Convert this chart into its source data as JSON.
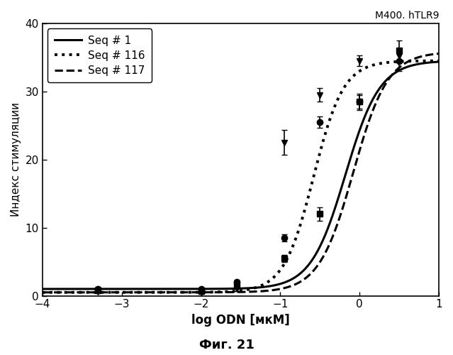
{
  "title_annotation": "M400. hTLR9",
  "ylabel": "Индекс стимуляции",
  "xlabel": "log ODN [мкМ]",
  "fig_label": "Фиг. 21",
  "xlim": [
    -4,
    1
  ],
  "ylim": [
    0,
    40
  ],
  "yticks": [
    0,
    10,
    20,
    30,
    40
  ],
  "xticks": [
    -4,
    -3,
    -2,
    -1,
    0,
    1
  ],
  "series": [
    {
      "label": "Seq # 1",
      "linestyle": "solid",
      "linewidth": 2.2,
      "marker": "o",
      "color": "#000000",
      "ec50_log": -0.18,
      "top": 34.5,
      "bottom": 1.0,
      "hill": 2.0,
      "data_x": [
        -3.3,
        -2.0,
        -1.55,
        -0.95,
        -0.5,
        0.0,
        0.5
      ],
      "data_y": [
        1.0,
        1.0,
        2.0,
        8.5,
        25.5,
        28.5,
        34.5
      ],
      "err_y": [
        0.3,
        0.2,
        0.3,
        0.5,
        0.8,
        1.0,
        1.5
      ]
    },
    {
      "label": "Seq # 116",
      "linestyle": "dotted",
      "linewidth": 2.8,
      "marker": "v",
      "color": "#000000",
      "ec50_log": -0.58,
      "top": 34.5,
      "bottom": 0.5,
      "hill": 2.3,
      "data_x": [
        -3.3,
        -2.0,
        -1.55,
        -0.95,
        -0.5,
        0.0,
        0.5
      ],
      "data_y": [
        0.6,
        0.5,
        1.0,
        22.5,
        29.5,
        34.5,
        35.2
      ],
      "err_y": [
        0.2,
        0.2,
        0.3,
        1.8,
        1.0,
        0.8,
        0.5
      ]
    },
    {
      "label": "Seq # 117",
      "linestyle": "dashed",
      "linewidth": 2.2,
      "marker": "s",
      "color": "#000000",
      "ec50_log": -0.08,
      "top": 35.8,
      "bottom": 0.5,
      "hill": 2.0,
      "data_x": [
        -3.3,
        -2.0,
        -1.55,
        -0.95,
        -0.5,
        0.0,
        0.5
      ],
      "data_y": [
        0.8,
        0.7,
        1.5,
        5.5,
        12.0,
        28.5,
        36.0
      ],
      "err_y": [
        0.2,
        0.2,
        0.3,
        0.5,
        1.0,
        1.2,
        1.5
      ]
    }
  ]
}
